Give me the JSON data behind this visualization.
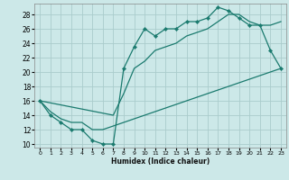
{
  "xlabel": "Humidex (Indice chaleur)",
  "bg_color": "#cce8e8",
  "grid_color": "#aacccc",
  "line_color": "#1a7a6e",
  "xlim": [
    -0.5,
    23.5
  ],
  "ylim": [
    9.5,
    29.5
  ],
  "xticks": [
    0,
    1,
    2,
    3,
    4,
    5,
    6,
    7,
    8,
    9,
    10,
    11,
    12,
    13,
    14,
    15,
    16,
    17,
    18,
    19,
    20,
    21,
    22,
    23
  ],
  "yticks": [
    10,
    12,
    14,
    16,
    18,
    20,
    22,
    24,
    26,
    28
  ],
  "line1_x": [
    0,
    1,
    2,
    3,
    4,
    5,
    6,
    7,
    8,
    9,
    10,
    11,
    12,
    13,
    14,
    15,
    16,
    17,
    18,
    19,
    20,
    21,
    22,
    23
  ],
  "line1_y": [
    16,
    14,
    13,
    12,
    12,
    10.5,
    10,
    10,
    20.5,
    23.5,
    26,
    25,
    26,
    26,
    27,
    27,
    27.5,
    29,
    28.5,
    27.5,
    26.5,
    26.5,
    23,
    20.5
  ],
  "line2_x": [
    0,
    1,
    2,
    3,
    4,
    5,
    6,
    7,
    8,
    9,
    10,
    11,
    12,
    13,
    14,
    15,
    16,
    17,
    18,
    19,
    20,
    21,
    22,
    23
  ],
  "line2_y": [
    16,
    14.5,
    13.5,
    13,
    13,
    12,
    12,
    12.5,
    13,
    13.5,
    14,
    14.5,
    15,
    15.5,
    16,
    16.5,
    17,
    17.5,
    18,
    18.5,
    19,
    19.5,
    20,
    20.5
  ],
  "line3_x": [
    0,
    7,
    8,
    9,
    10,
    11,
    12,
    13,
    14,
    15,
    16,
    17,
    18,
    19,
    20,
    21,
    22,
    23
  ],
  "line3_y": [
    16,
    14,
    17,
    20.5,
    21.5,
    23,
    23.5,
    24,
    25,
    25.5,
    26,
    27,
    28,
    28,
    27,
    26.5,
    26.5,
    27
  ]
}
